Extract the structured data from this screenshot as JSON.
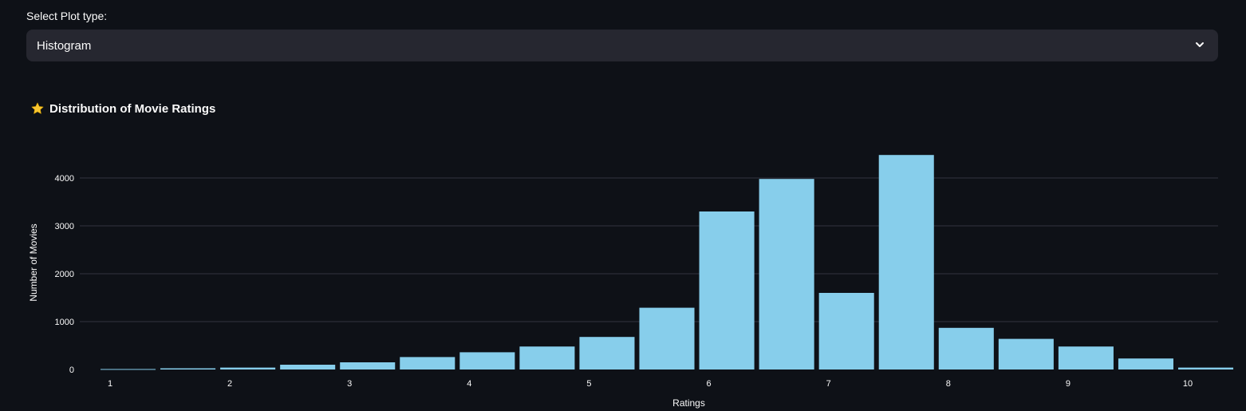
{
  "select": {
    "label": "Select Plot type:",
    "value": "Histogram"
  },
  "colors": {
    "bar": "#87ceeb",
    "grid": "#31333f",
    "background": "#0e1117"
  },
  "chart_data": {
    "type": "bar",
    "title": "Distribution of Movie Ratings",
    "title_icon": "star-icon",
    "xlabel": "Ratings",
    "ylabel": "Number of Movies",
    "xlim": [
      0.9,
      10.3
    ],
    "ylim": [
      0,
      4800
    ],
    "xticks": [
      1,
      2,
      3,
      4,
      5,
      6,
      7,
      8,
      9,
      10
    ],
    "yticks": [
      0,
      1000,
      2000,
      3000,
      4000
    ],
    "grid": true,
    "bin_width": 0.5,
    "bins": [
      {
        "x0": 0.9,
        "x1": 1.4,
        "value": 10
      },
      {
        "x0": 1.4,
        "x1": 1.9,
        "value": 25
      },
      {
        "x0": 1.9,
        "x1": 2.4,
        "value": 40
      },
      {
        "x0": 2.4,
        "x1": 2.9,
        "value": 100
      },
      {
        "x0": 2.9,
        "x1": 3.4,
        "value": 150
      },
      {
        "x0": 3.4,
        "x1": 3.9,
        "value": 260
      },
      {
        "x0": 3.9,
        "x1": 4.4,
        "value": 360
      },
      {
        "x0": 4.4,
        "x1": 4.9,
        "value": 480
      },
      {
        "x0": 4.9,
        "x1": 5.4,
        "value": 680
      },
      {
        "x0": 5.4,
        "x1": 5.9,
        "value": 1290
      },
      {
        "x0": 5.9,
        "x1": 6.4,
        "value": 3300
      },
      {
        "x0": 6.4,
        "x1": 6.9,
        "value": 3980
      },
      {
        "x0": 6.9,
        "x1": 7.4,
        "value": 1600
      },
      {
        "x0": 7.4,
        "x1": 7.9,
        "value": 4480
      },
      {
        "x0": 7.9,
        "x1": 8.4,
        "value": 870
      },
      {
        "x0": 8.4,
        "x1": 8.9,
        "value": 640
      },
      {
        "x0": 8.9,
        "x1": 9.4,
        "value": 480
      },
      {
        "x0": 9.4,
        "x1": 9.9,
        "value": 230
      },
      {
        "x0": 9.9,
        "x1": 10.4,
        "value": 40
      }
    ]
  }
}
